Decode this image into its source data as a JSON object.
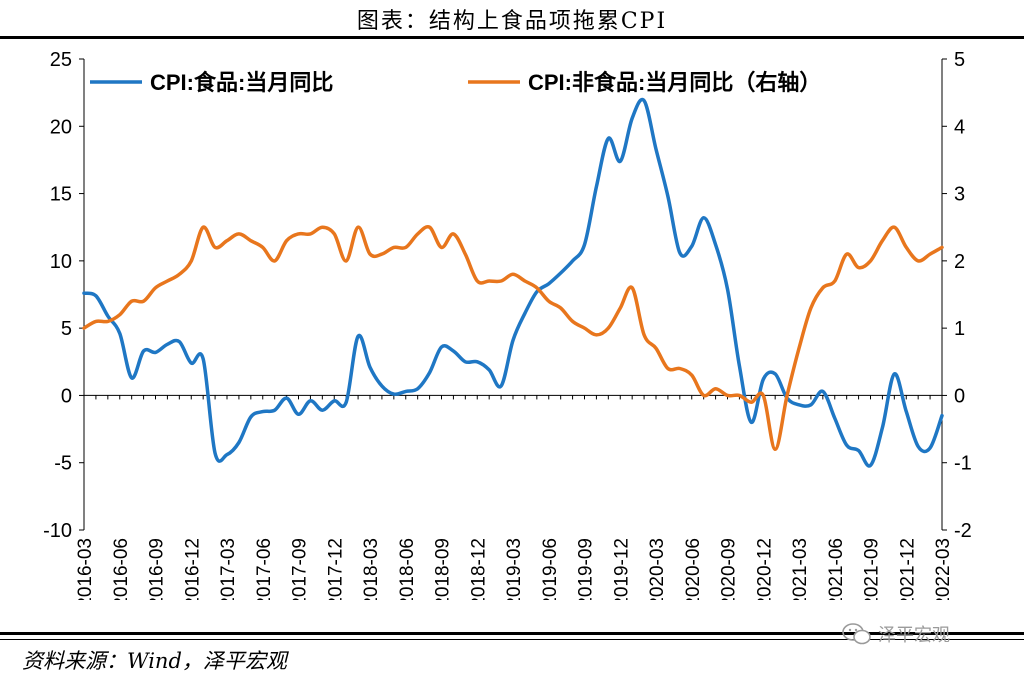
{
  "title": "图表：结构上食品项拖累CPI",
  "source": "资料来源：Wind，泽平宏观",
  "watermark": "泽平宏观",
  "chart_data": {
    "type": "line",
    "x": [
      "2016-03",
      "2016-04",
      "2016-05",
      "2016-06",
      "2016-07",
      "2016-08",
      "2016-09",
      "2016-10",
      "2016-11",
      "2016-12",
      "2017-01",
      "2017-02",
      "2017-03",
      "2017-04",
      "2017-05",
      "2017-06",
      "2017-07",
      "2017-08",
      "2017-09",
      "2017-10",
      "2017-11",
      "2017-12",
      "2018-01",
      "2018-02",
      "2018-03",
      "2018-04",
      "2018-05",
      "2018-06",
      "2018-07",
      "2018-08",
      "2018-09",
      "2018-10",
      "2018-11",
      "2018-12",
      "2019-01",
      "2019-02",
      "2019-03",
      "2019-04",
      "2019-05",
      "2019-06",
      "2019-07",
      "2019-08",
      "2019-09",
      "2019-10",
      "2019-11",
      "2019-12",
      "2020-01",
      "2020-02",
      "2020-03",
      "2020-04",
      "2020-05",
      "2020-06",
      "2020-07",
      "2020-08",
      "2020-09",
      "2020-10",
      "2020-11",
      "2020-12",
      "2021-01",
      "2021-02",
      "2021-03",
      "2021-04",
      "2021-05",
      "2021-06",
      "2021-07",
      "2021-08",
      "2021-09",
      "2021-10",
      "2021-11",
      "2021-12",
      "2022-01",
      "2022-02",
      "2022-03"
    ],
    "x_tick_labels": [
      "2016-03",
      "2016-06",
      "2016-09",
      "2016-12",
      "2017-03",
      "2017-06",
      "2017-09",
      "2017-12",
      "2018-03",
      "2018-06",
      "2018-09",
      "2018-12",
      "2019-03",
      "2019-06",
      "2019-09",
      "2019-12",
      "2020-03",
      "2020-06",
      "2020-09",
      "2020-12",
      "2021-03",
      "2021-06",
      "2021-09",
      "2021-12",
      "2022-03"
    ],
    "y_left": {
      "lim": [
        -10,
        25
      ],
      "ticks": [
        -10,
        -5,
        0,
        5,
        10,
        15,
        20,
        25
      ]
    },
    "y_right": {
      "lim": [
        -2,
        5
      ],
      "ticks": [
        -2,
        -1,
        0,
        1,
        2,
        3,
        4,
        5
      ]
    },
    "legend": "top",
    "grid": false,
    "series": [
      {
        "name": "CPI:食品:当月同比",
        "axis": "left",
        "color": "#1f77c4",
        "values": [
          7.6,
          7.4,
          5.9,
          4.6,
          1.3,
          3.3,
          3.2,
          3.8,
          4.0,
          2.4,
          2.7,
          -4.3,
          -4.4,
          -3.5,
          -1.6,
          -1.2,
          -1.1,
          -0.2,
          -1.4,
          -0.4,
          -1.1,
          -0.4,
          -0.5,
          4.4,
          2.1,
          0.7,
          0.1,
          0.3,
          0.5,
          1.7,
          3.6,
          3.3,
          2.5,
          2.5,
          1.9,
          0.7,
          4.1,
          6.1,
          7.7,
          8.3,
          9.1,
          10.0,
          11.2,
          15.5,
          19.1,
          17.4,
          20.6,
          21.9,
          18.3,
          14.8,
          10.6,
          11.1,
          13.2,
          11.2,
          7.9,
          2.2,
          -2.0,
          1.2,
          1.6,
          -0.2,
          -0.7,
          -0.7,
          0.3,
          -1.7,
          -3.7,
          -4.1,
          -5.2,
          -2.4,
          1.6,
          -1.2,
          -3.8,
          -3.9,
          -1.5
        ]
      },
      {
        "name": "CPI:非食品:当月同比（右轴）",
        "axis": "right",
        "color": "#e8761d",
        "values": [
          1.0,
          1.1,
          1.1,
          1.2,
          1.4,
          1.4,
          1.6,
          1.7,
          1.8,
          2.0,
          2.5,
          2.2,
          2.3,
          2.4,
          2.3,
          2.2,
          2.0,
          2.3,
          2.4,
          2.4,
          2.5,
          2.4,
          2.0,
          2.5,
          2.1,
          2.1,
          2.2,
          2.2,
          2.4,
          2.5,
          2.2,
          2.4,
          2.1,
          1.7,
          1.7,
          1.7,
          1.8,
          1.7,
          1.6,
          1.4,
          1.3,
          1.1,
          1.0,
          0.9,
          1.0,
          1.3,
          1.6,
          0.9,
          0.7,
          0.4,
          0.4,
          0.3,
          0.0,
          0.1,
          0.0,
          0.0,
          -0.1,
          0.0,
          -0.8,
          0.0,
          0.7,
          1.3,
          1.6,
          1.7,
          2.1,
          1.9,
          2.0,
          2.3,
          2.5,
          2.2,
          2.0,
          2.1,
          2.2
        ]
      }
    ]
  }
}
